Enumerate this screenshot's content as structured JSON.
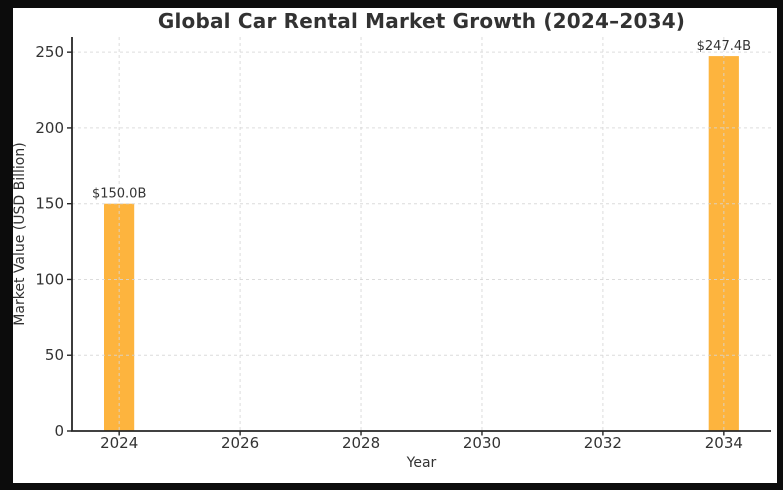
{
  "figure": {
    "frame_background": "#0c0c0c",
    "panel_background": "#ffffff"
  },
  "chart_data": {
    "type": "bar",
    "title": "Global Car Rental Market Growth (2024–2034)",
    "xlabel": "Year",
    "ylabel": "Market Value (USD Billion)",
    "categories": [
      2024,
      2034
    ],
    "values": [
      150.0,
      247.4
    ],
    "bar_labels": [
      "$150.0B",
      "$247.4B"
    ],
    "x_tick_labels": [
      "2024",
      "2026",
      "2028",
      "2030",
      "2032",
      "2034"
    ],
    "x_tick_values": [
      2024,
      2026,
      2028,
      2030,
      2032,
      2034
    ],
    "y_tick_labels": [
      "0",
      "50",
      "100",
      "150",
      "200",
      "250"
    ],
    "y_tick_values": [
      0,
      50,
      100,
      150,
      200,
      250
    ],
    "xlim": [
      2023.22,
      2034.78
    ],
    "ylim": [
      0,
      260
    ],
    "bar_width_years": 0.5,
    "grid": true,
    "grid_style": "dashed",
    "legend": "none",
    "colors": {
      "bar": "#FDB43E",
      "grid": "#d6d6d6",
      "axis": "#262626",
      "text": "#333333",
      "title": "#323232"
    }
  }
}
